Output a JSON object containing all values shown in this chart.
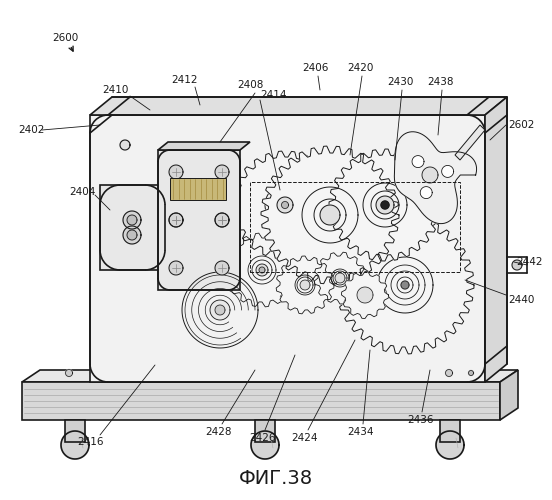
{
  "figure_label": "ФИГ.38",
  "bg_color": "#ffffff",
  "line_color": "#1a1a1a",
  "fig_width": 5.52,
  "fig_height": 5.0,
  "dpi": 100,
  "annotation_fontsize": 7.5,
  "caption_fontsize": 14
}
